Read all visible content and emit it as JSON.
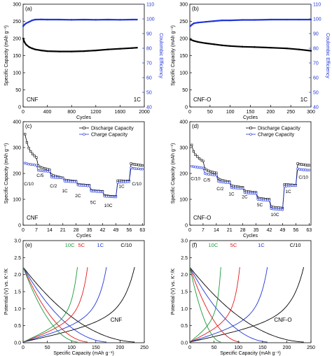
{
  "colors": {
    "black": "#000000",
    "blue": "#1f35d8",
    "red": "#e31a1c",
    "green": "#1a9a3a"
  },
  "chart_data": [
    {
      "panel": "(a)",
      "type": "scatter",
      "sample": "CNF",
      "rate": "1C",
      "xlabel": "Cycles",
      "ylabel": "Specific Capacity (mAh g⁻¹)",
      "y2label": "Coulombic Efficiency",
      "xlim": [
        0,
        2000
      ],
      "ylim": [
        0,
        300
      ],
      "y2lim": [
        40,
        110
      ],
      "xticks": [
        0,
        400,
        800,
        1200,
        1600,
        2000
      ],
      "yticks": [
        0,
        50,
        100,
        150,
        200,
        250,
        300
      ],
      "y2ticks": [
        40,
        50,
        60,
        70,
        80,
        90,
        100,
        110
      ],
      "series": [
        {
          "axis": "left",
          "color": "black",
          "x": [
            1,
            20,
            50,
            100,
            150,
            200,
            300,
            400,
            600,
            800,
            1000,
            1200,
            1400,
            1600,
            1800,
            1880
          ],
          "y": [
            200,
            190,
            182,
            175,
            171,
            168,
            165,
            163,
            162,
            162,
            163,
            165,
            168,
            170,
            172,
            173
          ]
        },
        {
          "axis": "right",
          "color": "blue",
          "x": [
            1,
            20,
            50,
            100,
            150,
            200,
            300,
            400,
            600,
            800,
            1000,
            1200,
            1400,
            1600,
            1800,
            1880
          ],
          "y": [
            95,
            96,
            97,
            98,
            99,
            99.5,
            99.6,
            99.5,
            99.5,
            99.4,
            99.5,
            99.4,
            99.5,
            99.4,
            99.5,
            99.5
          ]
        }
      ]
    },
    {
      "panel": "(b)",
      "type": "scatter",
      "sample": "CNF-O",
      "rate": "1C",
      "xlabel": "Cycles",
      "ylabel": "Specific Capacity (mAh g⁻¹)",
      "y2label": "Coulombic Efficiency",
      "xlim": [
        0,
        300
      ],
      "ylim": [
        0,
        300
      ],
      "y2lim": [
        40,
        110
      ],
      "xticks": [
        0,
        50,
        100,
        150,
        200,
        250,
        300
      ],
      "yticks": [
        0,
        50,
        100,
        150,
        200,
        250,
        300
      ],
      "y2ticks": [
        40,
        50,
        60,
        70,
        80,
        90,
        100,
        110
      ],
      "series": [
        {
          "axis": "left",
          "color": "black",
          "x": [
            1,
            10,
            20,
            40,
            60,
            80,
            100,
            130,
            160,
            200,
            240,
            270,
            300
          ],
          "y": [
            197,
            193,
            190,
            186,
            183,
            180,
            178,
            176,
            175,
            173,
            171,
            168,
            164
          ]
        },
        {
          "axis": "right",
          "color": "blue",
          "x": [
            1,
            5,
            10,
            20,
            40,
            60,
            80,
            100,
            130,
            160,
            200,
            240,
            270,
            300
          ],
          "y": [
            95,
            96,
            97,
            97.5,
            98,
            98.5,
            99,
            99,
            99.3,
            99.3,
            99.5,
            99.5,
            99.5,
            99.5
          ]
        }
      ]
    },
    {
      "panel": "(c)",
      "type": "line",
      "sample": "CNF",
      "xlabel": "Cycles",
      "ylabel": "Specific Capacity (mAh g⁻¹)",
      "xlim": [
        0,
        64
      ],
      "ylim": [
        0,
        400
      ],
      "xticks": [
        0,
        7,
        14,
        21,
        28,
        35,
        42,
        49,
        56,
        63
      ],
      "yticks": [
        0,
        100,
        200,
        300,
        400
      ],
      "legend": [
        "Discharge Capacity",
        "Charge Capacity"
      ],
      "rate_labels": [
        {
          "text": "C/10",
          "x": 3,
          "y": 160
        },
        {
          "text": "C/5",
          "x": 9,
          "y": 192
        },
        {
          "text": "C/2",
          "x": 16,
          "y": 152
        },
        {
          "text": "1C",
          "x": 22,
          "y": 132
        },
        {
          "text": "2C",
          "x": 29,
          "y": 113
        },
        {
          "text": "5C",
          "x": 37,
          "y": 88
        },
        {
          "text": "10C",
          "x": 45,
          "y": 76
        },
        {
          "text": "1C",
          "x": 52,
          "y": 150
        },
        {
          "text": "C/10",
          "x": 60,
          "y": 160
        }
      ],
      "series": [
        {
          "name": "Discharge Capacity",
          "color": "black",
          "marker": "square",
          "x": [
            1,
            2,
            3,
            4,
            5,
            6,
            7,
            8,
            9,
            10,
            11,
            12,
            13,
            14,
            15,
            16,
            17,
            18,
            19,
            20,
            21,
            22,
            23,
            24,
            25,
            26,
            27,
            28,
            29,
            30,
            31,
            32,
            33,
            34,
            35,
            36,
            37,
            38,
            39,
            40,
            41,
            42,
            43,
            44,
            45,
            46,
            47,
            48,
            49,
            50,
            51,
            52,
            53,
            54,
            55,
            56,
            57,
            58,
            59,
            60,
            61,
            62,
            63
          ],
          "y": [
            352,
            320,
            298,
            285,
            275,
            268,
            262,
            230,
            225,
            222,
            220,
            218,
            216,
            214,
            195,
            192,
            190,
            188,
            186,
            184,
            183,
            175,
            174,
            173,
            172,
            171,
            170,
            170,
            158,
            157,
            156,
            156,
            155,
            154,
            154,
            135,
            134,
            133,
            132,
            132,
            131,
            131,
            115,
            114,
            113,
            112,
            112,
            111,
            111,
            172,
            172,
            172,
            171,
            171,
            171,
            171,
            238,
            236,
            235,
            234,
            233,
            232,
            231
          ]
        },
        {
          "name": "Charge Capacity",
          "color": "blue",
          "marker": "circle",
          "x": [
            1,
            2,
            3,
            4,
            5,
            6,
            7,
            8,
            9,
            10,
            11,
            12,
            13,
            14,
            15,
            16,
            17,
            18,
            19,
            20,
            21,
            22,
            23,
            24,
            25,
            26,
            27,
            28,
            29,
            30,
            31,
            32,
            33,
            34,
            35,
            36,
            37,
            38,
            39,
            40,
            41,
            42,
            43,
            44,
            45,
            46,
            47,
            48,
            49,
            50,
            51,
            52,
            53,
            54,
            55,
            56,
            57,
            58,
            59,
            60,
            61,
            62,
            63
          ],
          "y": [
            240,
            238,
            236,
            235,
            234,
            233,
            232,
            212,
            211,
            210,
            209,
            209,
            208,
            208,
            186,
            185,
            184,
            184,
            183,
            183,
            182,
            170,
            169,
            169,
            168,
            168,
            168,
            167,
            155,
            154,
            154,
            153,
            153,
            152,
            152,
            132,
            131,
            131,
            130,
            130,
            129,
            129,
            112,
            111,
            111,
            110,
            110,
            109,
            109,
            165,
            166,
            167,
            167,
            167,
            168,
            168,
            222,
            220,
            219,
            218,
            218,
            217,
            217
          ]
        }
      ]
    },
    {
      "panel": "(d)",
      "type": "line",
      "sample": "CNF-O",
      "xlabel": "Cycles",
      "ylabel": "Specific Capacity (mAh g⁻¹)",
      "xlim": [
        0,
        64
      ],
      "ylim": [
        0,
        400
      ],
      "xticks": [
        0,
        7,
        14,
        21,
        28,
        35,
        42,
        49,
        56,
        63
      ],
      "yticks": [
        0,
        100,
        200,
        300,
        400
      ],
      "legend": [
        "Discharge Capacity",
        "Charge Capacity"
      ],
      "rate_labels": [
        {
          "text": "C/10",
          "x": 3,
          "y": 180
        },
        {
          "text": "C/5",
          "x": 9,
          "y": 175
        },
        {
          "text": "C/2",
          "x": 16,
          "y": 140
        },
        {
          "text": "1C",
          "x": 22,
          "y": 120
        },
        {
          "text": "2C",
          "x": 29,
          "y": 110
        },
        {
          "text": "5C",
          "x": 37,
          "y": 78
        },
        {
          "text": "10C",
          "x": 45,
          "y": 40
        },
        {
          "text": "1C",
          "x": 52,
          "y": 130
        },
        {
          "text": "C/10",
          "x": 60,
          "y": 185
        }
      ],
      "series": [
        {
          "name": "Discharge Capacity",
          "color": "black",
          "marker": "square",
          "x": [
            1,
            2,
            3,
            4,
            5,
            6,
            7,
            8,
            9,
            10,
            11,
            12,
            13,
            14,
            15,
            16,
            17,
            18,
            19,
            20,
            21,
            22,
            23,
            24,
            25,
            26,
            27,
            28,
            29,
            30,
            31,
            32,
            33,
            34,
            35,
            36,
            37,
            38,
            39,
            40,
            41,
            42,
            43,
            44,
            45,
            46,
            47,
            48,
            49,
            50,
            51,
            52,
            53,
            54,
            55,
            56,
            57,
            58,
            59,
            60,
            61,
            62,
            63
          ],
          "y": [
            310,
            285,
            272,
            265,
            258,
            252,
            248,
            218,
            213,
            210,
            207,
            205,
            203,
            202,
            180,
            176,
            174,
            172,
            170,
            169,
            168,
            153,
            151,
            150,
            149,
            148,
            147,
            147,
            133,
            131,
            130,
            129,
            128,
            127,
            127,
            106,
            104,
            103,
            102,
            101,
            101,
            100,
            72,
            70,
            69,
            68,
            68,
            67,
            66,
            158,
            157,
            157,
            156,
            156,
            155,
            155,
            238,
            236,
            235,
            234,
            233,
            232,
            232
          ]
        },
        {
          "name": "Charge Capacity",
          "color": "blue",
          "marker": "circle",
          "x": [
            1,
            2,
            3,
            4,
            5,
            6,
            7,
            8,
            9,
            10,
            11,
            12,
            13,
            14,
            15,
            16,
            17,
            18,
            19,
            20,
            21,
            22,
            23,
            24,
            25,
            26,
            27,
            28,
            29,
            30,
            31,
            32,
            33,
            34,
            35,
            36,
            37,
            38,
            39,
            40,
            41,
            42,
            43,
            44,
            45,
            46,
            47,
            48,
            49,
            50,
            51,
            52,
            53,
            54,
            55,
            56,
            57,
            58,
            59,
            60,
            61,
            62,
            63
          ],
          "y": [
            228,
            226,
            225,
            224,
            223,
            222,
            221,
            200,
            198,
            197,
            196,
            195,
            194,
            194,
            170,
            168,
            167,
            166,
            165,
            165,
            164,
            145,
            144,
            144,
            143,
            143,
            142,
            142,
            126,
            125,
            124,
            124,
            123,
            123,
            122,
            100,
            99,
            98,
            97,
            97,
            96,
            96,
            64,
            63,
            62,
            62,
            61,
            61,
            60,
            150,
            151,
            152,
            152,
            153,
            153,
            153,
            218,
            216,
            215,
            214,
            214,
            213,
            213
          ]
        }
      ]
    },
    {
      "panel": "(e)",
      "type": "line",
      "sample": "CNF",
      "xlabel": "Specific Capacity (mAh g⁻¹)",
      "ylabel": "Potential (V) vs. K⁺/K",
      "xlim": [
        0,
        250
      ],
      "ylim": [
        0,
        3.0
      ],
      "xticks": [
        0,
        50,
        100,
        150,
        200,
        250
      ],
      "yticks": [
        0,
        0.5,
        1.0,
        1.5,
        2.0,
        2.5,
        3.0
      ],
      "series": [
        {
          "name": "C/10",
          "color": "black",
          "capacity": 230
        },
        {
          "name": "1C",
          "color": "blue",
          "capacity": 172
        },
        {
          "name": "5C",
          "color": "red",
          "capacity": 133
        },
        {
          "name": "10C",
          "color": "green",
          "capacity": 112
        }
      ]
    },
    {
      "panel": "(f)",
      "type": "line",
      "sample": "CNF-O",
      "xlabel": "Specific Capacity (mAh g⁻¹)",
      "ylabel": "Potential (V) vs. K⁺/K",
      "xlim": [
        0,
        250
      ],
      "ylim": [
        0,
        3.0
      ],
      "xticks": [
        0,
        50,
        100,
        150,
        200,
        250
      ],
      "yticks": [
        0,
        0.5,
        1.0,
        1.5,
        2.0,
        2.5,
        3.0
      ],
      "series": [
        {
          "name": "C/10",
          "color": "black",
          "capacity": 235
        },
        {
          "name": "1C",
          "color": "blue",
          "capacity": 160
        },
        {
          "name": "5C",
          "color": "red",
          "capacity": 103
        },
        {
          "name": "10C",
          "color": "green",
          "capacity": 64
        }
      ]
    }
  ]
}
